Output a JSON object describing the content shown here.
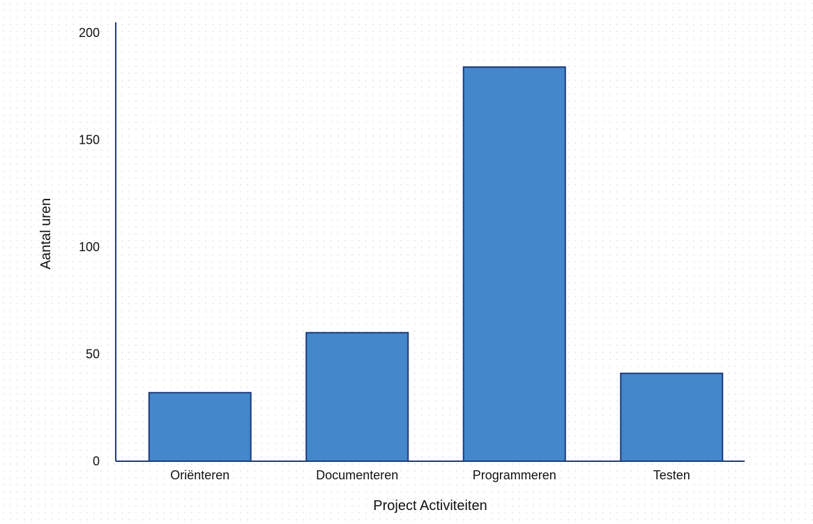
{
  "chart_data": {
    "type": "bar",
    "title": "",
    "xlabel": "Project Activiteiten",
    "ylabel": "Aantal uren",
    "categories": [
      "Oriënteren",
      "Documenteren",
      "Programmeren",
      "Testen"
    ],
    "values": [
      32,
      60,
      184,
      41
    ],
    "ylim": [
      0,
      200
    ],
    "yticks": [
      "0",
      "50",
      "100",
      "150",
      "200"
    ],
    "grid": false,
    "legend": "none",
    "colors": {
      "bar_fill": "#4487cb",
      "bar_stroke": "#1f3a7a",
      "axis": "#1f3a7a"
    }
  }
}
